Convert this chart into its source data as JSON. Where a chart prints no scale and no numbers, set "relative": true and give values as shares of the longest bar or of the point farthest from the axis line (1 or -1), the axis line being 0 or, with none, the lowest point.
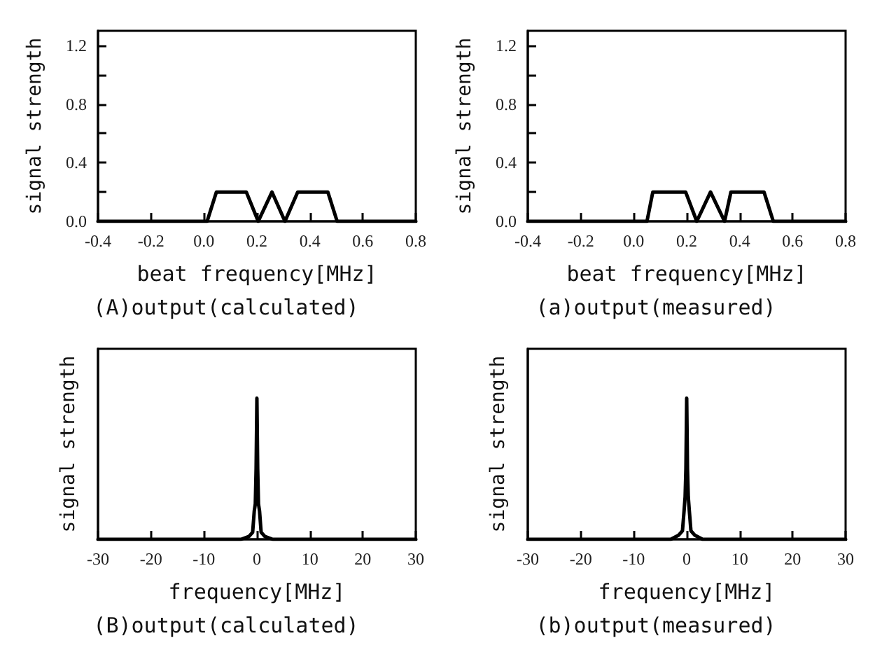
{
  "chart_data": [
    {
      "type": "line",
      "title": "(A)output(calculated)",
      "xlabel": "beat frequency[MHz]",
      "ylabel": "signal strength",
      "color": "#000000",
      "x": [
        -0.4,
        0.012,
        0.047,
        0.16,
        0.205,
        0.257,
        0.306,
        0.354,
        0.468,
        0.503,
        0.8
      ],
      "values": [
        0,
        0,
        0.2,
        0.2,
        0,
        0.2,
        0,
        0.2,
        0.2,
        0,
        0
      ],
      "xlim": [
        -0.4,
        0.8
      ],
      "xticks": [
        -0.4,
        -0.2,
        {
          "value": 0,
          "label": "0.0"
        },
        0.2,
        0.4,
        0.6,
        0.8
      ],
      "ylim": [
        0,
        1.3
      ],
      "yticks": [
        {
          "value": 0,
          "label": "0.0"
        },
        {
          "value": 0.2,
          "label": null
        },
        0.4,
        {
          "value": 0.6,
          "label": null
        },
        0.8,
        {
          "value": 1.0,
          "label": null
        },
        1.2
      ]
    },
    {
      "type": "line",
      "title": "(a)output(measured)",
      "xlabel": "beat frequency[MHz]",
      "ylabel": "signal strength",
      "color": "#000000",
      "x": [
        -0.4,
        0.05,
        0.072,
        0.196,
        0.238,
        0.29,
        0.343,
        0.367,
        0.492,
        0.527,
        0.8
      ],
      "values": [
        0,
        0,
        0.2,
        0.2,
        0,
        0.2,
        0,
        0.2,
        0.2,
        0,
        0
      ],
      "xlim": [
        -0.4,
        0.8
      ],
      "xticks": [
        -0.4,
        -0.2,
        {
          "value": 0,
          "label": "0.0"
        },
        0.2,
        0.4,
        0.6,
        0.8
      ],
      "ylim": [
        0,
        1.3
      ],
      "yticks": [
        {
          "value": 0,
          "label": "0.0"
        },
        {
          "value": 0.2,
          "label": null
        },
        0.4,
        {
          "value": 0.6,
          "label": null
        },
        0.8,
        {
          "value": 1.0,
          "label": null
        },
        1.2
      ]
    },
    {
      "type": "line",
      "title": "(B)output(calculated)",
      "xlabel": "frequency[MHz]",
      "ylabel": "signal strength",
      "color": "#000000",
      "relative": true,
      "tick_labels": "x",
      "x": [
        -30,
        -3,
        -1.5,
        -0.8,
        -0.5,
        -0.3,
        -0.15,
        0,
        0.15,
        0.3,
        0.5,
        0.8,
        1.5,
        3,
        30
      ],
      "values": [
        0,
        0,
        0.02,
        0.05,
        0.2,
        0.25,
        0.5,
        1,
        0.5,
        0.25,
        0.2,
        0.05,
        0.02,
        0,
        0
      ],
      "xlim": [
        -30,
        30
      ],
      "xticks": [
        -30,
        -20,
        -10,
        0,
        10,
        20,
        30
      ]
    },
    {
      "type": "line",
      "title": "(b)output(measured)",
      "xlabel": "frequency[MHz]",
      "ylabel": "signal strength",
      "color": "#000000",
      "relative": true,
      "tick_labels": "x",
      "x": [
        -30,
        -3,
        -1.5,
        -0.8,
        -0.5,
        -0.3,
        -0.15,
        0,
        0.15,
        0.3,
        0.5,
        0.8,
        1.5,
        3,
        30
      ],
      "values": [
        0,
        0,
        0.03,
        0.06,
        0.2,
        0.3,
        0.5,
        1,
        0.5,
        0.3,
        0.2,
        0.06,
        0.03,
        0,
        0
      ],
      "xlim": [
        -30,
        30
      ],
      "xticks": [
        -30,
        -20,
        -10,
        0,
        10,
        20,
        30
      ]
    }
  ]
}
